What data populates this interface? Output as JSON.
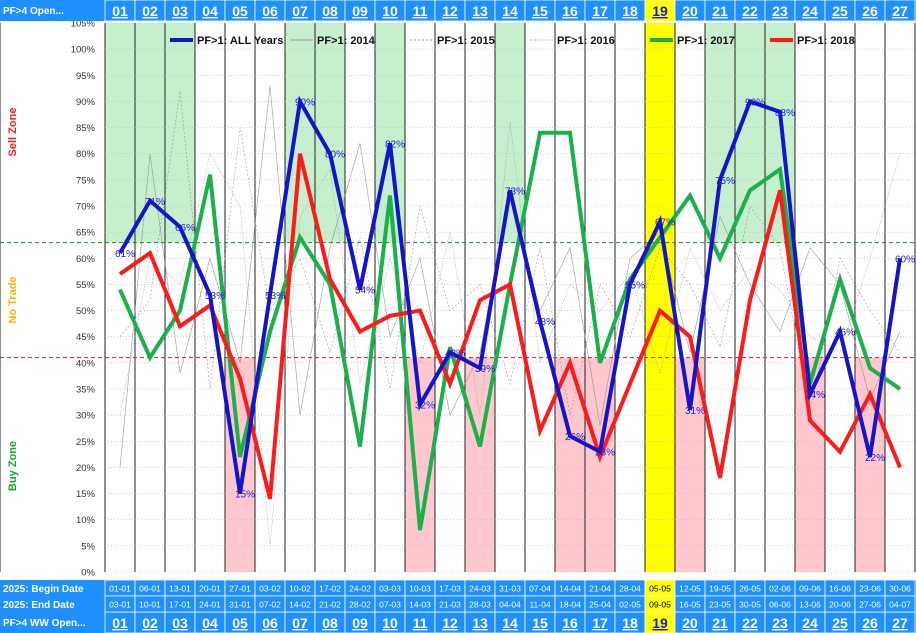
{
  "header": {
    "top_label": "PF>4 Open...",
    "bottom_label": "PF>4 WW Open...",
    "begin_label": "2025: Begin Date",
    "end_label": "2025: End Date"
  },
  "zones": {
    "sell": "Sell Zone",
    "no_trade": "No Trade",
    "buy": "Buy Zone"
  },
  "colors": {
    "header_bg": "#1e90ff",
    "header_text": "#ffffff",
    "week_text": "#1a1ad8",
    "sell_zone": "#ff1a1a",
    "no_trade_zone": "#ffb300",
    "buy_zone": "#1aa82a",
    "green_band": "#c6efce",
    "pink_band": "#ffc7ce",
    "highlight": "#ffff00",
    "all_years": "#1414c8",
    "y2017": "#1ab04a",
    "y2018": "#ff1a1a",
    "upper_line": "#2e7d32",
    "lower_line": "#c62828"
  },
  "chart_data": {
    "type": "line",
    "weeks": [
      "01",
      "02",
      "03",
      "04",
      "05",
      "06",
      "07",
      "08",
      "09",
      "10",
      "11",
      "12",
      "13",
      "14",
      "15",
      "16",
      "17",
      "18",
      "19",
      "20",
      "21",
      "22",
      "23",
      "24",
      "25",
      "26",
      "27"
    ],
    "begin_dates": [
      "01-01",
      "06-01",
      "13-01",
      "20-01",
      "27-01",
      "03-02",
      "10-02",
      "17-02",
      "24-02",
      "03-03",
      "10-03",
      "17-03",
      "24-03",
      "31-03",
      "07-04",
      "14-04",
      "21-04",
      "28-04",
      "05-05",
      "12-05",
      "19-05",
      "26-05",
      "02-06",
      "09-06",
      "16-06",
      "23-06",
      "30-06"
    ],
    "end_dates": [
      "03-01",
      "10-01",
      "17-01",
      "24-01",
      "31-01",
      "07-02",
      "14-02",
      "21-02",
      "28-02",
      "07-03",
      "14-03",
      "21-03",
      "28-03",
      "04-04",
      "11-04",
      "18-04",
      "25-04",
      "02-05",
      "09-05",
      "16-05",
      "23-05",
      "30-05",
      "06-06",
      "13-06",
      "20-06",
      "27-06",
      "04-07"
    ],
    "y_ticks": [
      "0%",
      "5%",
      "10%",
      "15%",
      "20%",
      "25%",
      "30%",
      "35%",
      "40%",
      "45%",
      "50%",
      "55%",
      "60%",
      "65%",
      "70%",
      "75%",
      "80%",
      "85%",
      "90%",
      "95%",
      "100%",
      "105%"
    ],
    "ylim": [
      0,
      105
    ],
    "upper_threshold": 63,
    "lower_threshold": 41,
    "green_weeks": [
      "01",
      "02",
      "03",
      "07",
      "08",
      "10",
      "14",
      "21",
      "22",
      "23"
    ],
    "pink_weeks": [
      "05",
      "11",
      "13",
      "16",
      "17",
      "20",
      "24",
      "26"
    ],
    "highlight_week": "19",
    "legend": [
      "PF>1: ALL Years",
      "PF>1: 2014",
      "PF>1: 2015",
      "PF>1: 2016",
      "PF>1: 2017",
      "PF>1: 2018"
    ],
    "series": [
      {
        "name": "PF>1: ALL Years",
        "values": [
          61,
          71,
          66,
          53,
          15,
          53,
          90,
          80,
          54,
          82,
          32,
          42,
          39,
          73,
          48,
          26,
          23,
          55,
          67,
          31,
          75,
          90,
          88,
          34,
          46,
          22,
          60
        ],
        "labels": [
          "61%",
          "71%",
          "66%",
          "53%",
          "15%",
          "53%",
          "90%",
          "80%",
          "54%",
          "82%",
          "32%",
          "42%",
          "39%",
          "73%",
          "48%",
          "26%",
          "23%",
          "55%",
          "67%",
          "31%",
          "75%",
          "90%",
          "88%",
          "34%",
          "46%",
          "22%",
          "60%"
        ]
      },
      {
        "name": "PF>1: 2017",
        "values": [
          54,
          41,
          50,
          76,
          22,
          46,
          64,
          55,
          24,
          72,
          8,
          43,
          24,
          55,
          84,
          84,
          40,
          56,
          64,
          72,
          60,
          73,
          77,
          36,
          56,
          39,
          35
        ]
      },
      {
        "name": "PF>1: 2018",
        "values": [
          57,
          61,
          47,
          51,
          37,
          14,
          80,
          56,
          46,
          49,
          50,
          36,
          52,
          55,
          27,
          40,
          22,
          36,
          50,
          45,
          18,
          52,
          73,
          29,
          23,
          34,
          20
        ]
      }
    ],
    "faint_series": [
      {
        "name": "PF>1: 2014",
        "values": [
          20,
          80,
          38,
          60,
          40,
          93,
          30,
          62,
          82,
          45,
          60,
          30,
          42,
          73,
          50,
          62,
          28,
          60,
          65,
          42,
          68,
          55,
          46,
          62,
          55,
          33,
          46
        ]
      },
      {
        "name": "PF>1: 2015",
        "values": [
          45,
          52,
          92,
          35,
          85,
          50,
          60,
          42,
          64,
          35,
          70,
          50,
          55,
          36,
          62,
          30,
          55,
          45,
          62,
          55,
          43,
          70,
          62,
          30,
          60,
          50,
          42
        ]
      },
      {
        "name": "PF>1: 2016",
        "values": [
          30,
          60,
          55,
          80,
          70,
          5,
          68,
          77,
          36,
          60,
          40,
          65,
          30,
          86,
          40,
          55,
          50,
          57,
          38,
          62,
          50,
          58,
          54,
          45,
          42,
          60,
          80
        ]
      }
    ]
  }
}
